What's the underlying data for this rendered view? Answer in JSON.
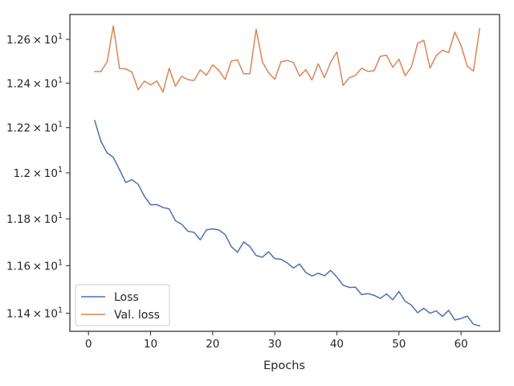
{
  "chart_data": {
    "type": "line",
    "xlabel": "Epochs",
    "ylabel": "",
    "xlim": [
      -3,
      66.2
    ],
    "ylim": [
      11.325,
      12.715
    ],
    "yscale": "log",
    "grid": false,
    "legend_position": "lower-left",
    "x_ticks": [
      {
        "value": 0,
        "label": "0"
      },
      {
        "value": 10,
        "label": "10"
      },
      {
        "value": 20,
        "label": "20"
      },
      {
        "value": 30,
        "label": "30"
      },
      {
        "value": 40,
        "label": "40"
      },
      {
        "value": 50,
        "label": "50"
      },
      {
        "value": 60,
        "label": "60"
      }
    ],
    "y_ticks": [
      {
        "value": 11.4,
        "mantissa": "1.14",
        "base": "10",
        "exp": "1"
      },
      {
        "value": 11.6,
        "mantissa": "1.16",
        "base": "10",
        "exp": "1"
      },
      {
        "value": 11.8,
        "mantissa": "1.18",
        "base": "10",
        "exp": "1"
      },
      {
        "value": 12.0,
        "mantissa": "1.2",
        "base": "10",
        "exp": "1"
      },
      {
        "value": 12.2,
        "mantissa": "1.22",
        "base": "10",
        "exp": "1"
      },
      {
        "value": 12.4,
        "mantissa": "1.24",
        "base": "10",
        "exp": "1"
      },
      {
        "value": 12.6,
        "mantissa": "1.26",
        "base": "10",
        "exp": "1"
      }
    ],
    "x": [
      1,
      2,
      3,
      4,
      5,
      6,
      7,
      8,
      9,
      10,
      11,
      12,
      13,
      14,
      15,
      16,
      17,
      18,
      19,
      20,
      21,
      22,
      23,
      24,
      25,
      26,
      27,
      28,
      29,
      30,
      31,
      32,
      33,
      34,
      35,
      36,
      37,
      38,
      39,
      40,
      41,
      42,
      43,
      44,
      45,
      46,
      47,
      48,
      49,
      50,
      51,
      52,
      53,
      54,
      55,
      56,
      57,
      58,
      59,
      60,
      61,
      62,
      63
    ],
    "series": [
      {
        "name": "Loss",
        "color": "#4c72b0",
        "values": [
          12.232,
          12.139,
          12.088,
          12.068,
          12.014,
          11.958,
          11.97,
          11.95,
          11.898,
          11.861,
          11.862,
          11.849,
          11.843,
          11.792,
          11.777,
          11.747,
          11.742,
          11.71,
          11.753,
          11.757,
          11.752,
          11.733,
          11.681,
          11.657,
          11.701,
          11.681,
          11.643,
          11.636,
          11.659,
          11.63,
          11.627,
          11.612,
          11.59,
          11.607,
          11.571,
          11.556,
          11.568,
          11.557,
          11.58,
          11.552,
          11.518,
          11.508,
          11.509,
          11.478,
          11.482,
          11.475,
          11.462,
          11.481,
          11.456,
          11.491,
          11.45,
          11.434,
          11.402,
          11.421,
          11.4,
          11.41,
          11.387,
          11.412,
          11.372,
          11.378,
          11.388,
          11.354,
          11.348
        ]
      },
      {
        "name": "Val. loss",
        "color": "#dd8452",
        "values": [
          12.453,
          12.452,
          12.497,
          12.662,
          12.466,
          12.465,
          12.45,
          12.37,
          12.409,
          12.392,
          12.41,
          12.36,
          12.467,
          12.386,
          12.431,
          12.416,
          12.412,
          12.46,
          12.436,
          12.483,
          12.458,
          12.417,
          12.5,
          12.506,
          12.442,
          12.443,
          12.647,
          12.497,
          12.447,
          12.417,
          12.497,
          12.503,
          12.494,
          12.432,
          12.461,
          12.414,
          12.488,
          12.425,
          12.495,
          12.542,
          12.39,
          12.424,
          12.435,
          12.468,
          12.453,
          12.456,
          12.522,
          12.527,
          12.472,
          12.509,
          12.434,
          12.473,
          12.581,
          12.596,
          12.468,
          12.525,
          12.55,
          12.539,
          12.633,
          12.572,
          12.477,
          12.455,
          12.65
        ]
      }
    ]
  }
}
